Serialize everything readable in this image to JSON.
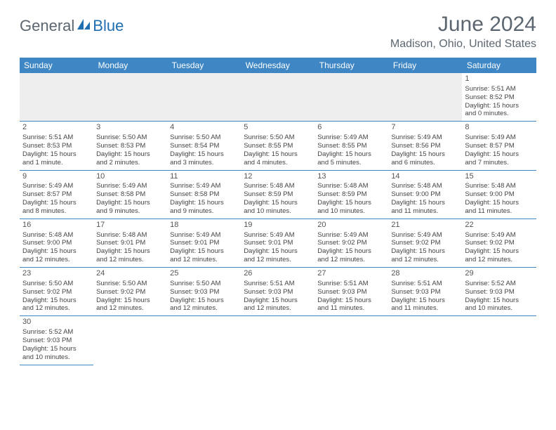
{
  "logo": {
    "part1": "General",
    "part2": "Blue"
  },
  "title": "June 2024",
  "location": "Madison, Ohio, United States",
  "weekdays": [
    "Sunday",
    "Monday",
    "Tuesday",
    "Wednesday",
    "Thursday",
    "Friday",
    "Saturday"
  ],
  "colors": {
    "header_bg": "#3e86c4",
    "header_fg": "#ffffff",
    "rule": "#3e86c4",
    "empty_bg": "#eeeeee",
    "text": "#444444",
    "title_fg": "#5c6670",
    "logo_gray": "#5c6670",
    "logo_blue": "#1f6fb0"
  },
  "layout": {
    "leading_blanks": 6,
    "days_in_month": 30,
    "cell_fontsize_pt": 7,
    "daynum_fontsize_pt": 8,
    "title_fontsize_pt": 22,
    "location_fontsize_pt": 12
  },
  "days": [
    {
      "n": 1,
      "sunrise": "5:51 AM",
      "sunset": "8:52 PM",
      "dl_h": 15,
      "dl_m": 0
    },
    {
      "n": 2,
      "sunrise": "5:51 AM",
      "sunset": "8:53 PM",
      "dl_h": 15,
      "dl_m": 1
    },
    {
      "n": 3,
      "sunrise": "5:50 AM",
      "sunset": "8:53 PM",
      "dl_h": 15,
      "dl_m": 2
    },
    {
      "n": 4,
      "sunrise": "5:50 AM",
      "sunset": "8:54 PM",
      "dl_h": 15,
      "dl_m": 3
    },
    {
      "n": 5,
      "sunrise": "5:50 AM",
      "sunset": "8:55 PM",
      "dl_h": 15,
      "dl_m": 4
    },
    {
      "n": 6,
      "sunrise": "5:49 AM",
      "sunset": "8:55 PM",
      "dl_h": 15,
      "dl_m": 5
    },
    {
      "n": 7,
      "sunrise": "5:49 AM",
      "sunset": "8:56 PM",
      "dl_h": 15,
      "dl_m": 6
    },
    {
      "n": 8,
      "sunrise": "5:49 AM",
      "sunset": "8:57 PM",
      "dl_h": 15,
      "dl_m": 7
    },
    {
      "n": 9,
      "sunrise": "5:49 AM",
      "sunset": "8:57 PM",
      "dl_h": 15,
      "dl_m": 8
    },
    {
      "n": 10,
      "sunrise": "5:49 AM",
      "sunset": "8:58 PM",
      "dl_h": 15,
      "dl_m": 9
    },
    {
      "n": 11,
      "sunrise": "5:49 AM",
      "sunset": "8:58 PM",
      "dl_h": 15,
      "dl_m": 9
    },
    {
      "n": 12,
      "sunrise": "5:48 AM",
      "sunset": "8:59 PM",
      "dl_h": 15,
      "dl_m": 10
    },
    {
      "n": 13,
      "sunrise": "5:48 AM",
      "sunset": "8:59 PM",
      "dl_h": 15,
      "dl_m": 10
    },
    {
      "n": 14,
      "sunrise": "5:48 AM",
      "sunset": "9:00 PM",
      "dl_h": 15,
      "dl_m": 11
    },
    {
      "n": 15,
      "sunrise": "5:48 AM",
      "sunset": "9:00 PM",
      "dl_h": 15,
      "dl_m": 11
    },
    {
      "n": 16,
      "sunrise": "5:48 AM",
      "sunset": "9:00 PM",
      "dl_h": 15,
      "dl_m": 12
    },
    {
      "n": 17,
      "sunrise": "5:48 AM",
      "sunset": "9:01 PM",
      "dl_h": 15,
      "dl_m": 12
    },
    {
      "n": 18,
      "sunrise": "5:49 AM",
      "sunset": "9:01 PM",
      "dl_h": 15,
      "dl_m": 12
    },
    {
      "n": 19,
      "sunrise": "5:49 AM",
      "sunset": "9:01 PM",
      "dl_h": 15,
      "dl_m": 12
    },
    {
      "n": 20,
      "sunrise": "5:49 AM",
      "sunset": "9:02 PM",
      "dl_h": 15,
      "dl_m": 12
    },
    {
      "n": 21,
      "sunrise": "5:49 AM",
      "sunset": "9:02 PM",
      "dl_h": 15,
      "dl_m": 12
    },
    {
      "n": 22,
      "sunrise": "5:49 AM",
      "sunset": "9:02 PM",
      "dl_h": 15,
      "dl_m": 12
    },
    {
      "n": 23,
      "sunrise": "5:50 AM",
      "sunset": "9:02 PM",
      "dl_h": 15,
      "dl_m": 12
    },
    {
      "n": 24,
      "sunrise": "5:50 AM",
      "sunset": "9:02 PM",
      "dl_h": 15,
      "dl_m": 12
    },
    {
      "n": 25,
      "sunrise": "5:50 AM",
      "sunset": "9:03 PM",
      "dl_h": 15,
      "dl_m": 12
    },
    {
      "n": 26,
      "sunrise": "5:51 AM",
      "sunset": "9:03 PM",
      "dl_h": 15,
      "dl_m": 12
    },
    {
      "n": 27,
      "sunrise": "5:51 AM",
      "sunset": "9:03 PM",
      "dl_h": 15,
      "dl_m": 11
    },
    {
      "n": 28,
      "sunrise": "5:51 AM",
      "sunset": "9:03 PM",
      "dl_h": 15,
      "dl_m": 11
    },
    {
      "n": 29,
      "sunrise": "5:52 AM",
      "sunset": "9:03 PM",
      "dl_h": 15,
      "dl_m": 10
    },
    {
      "n": 30,
      "sunrise": "5:52 AM",
      "sunset": "9:03 PM",
      "dl_h": 15,
      "dl_m": 10
    }
  ]
}
